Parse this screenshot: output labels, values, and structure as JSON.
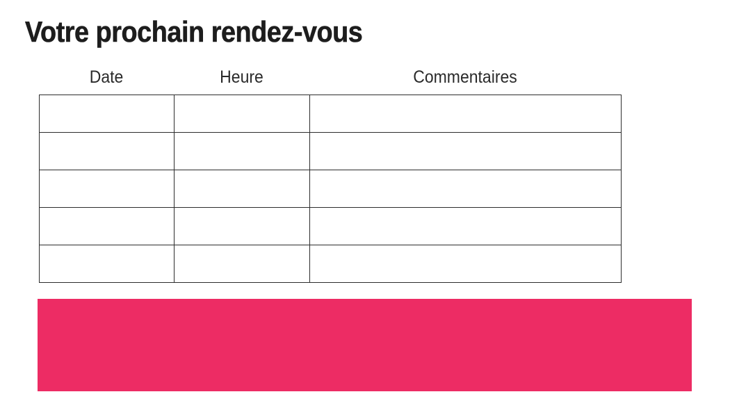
{
  "page": {
    "title": "Votre prochain rendez-vous",
    "background_color": "#ffffff",
    "text_color": "#1d1d1d"
  },
  "table": {
    "columns": [
      {
        "label": "Date"
      },
      {
        "label": "Heure"
      },
      {
        "label": "Commentaires"
      }
    ],
    "rows": [
      [
        "",
        "",
        ""
      ],
      [
        "",
        "",
        ""
      ],
      [
        "",
        "",
        ""
      ],
      [
        "",
        "",
        ""
      ],
      [
        "",
        "",
        ""
      ]
    ],
    "border_color": "#2c2c2c"
  },
  "banner": {
    "color": "#ED2C64",
    "text": ""
  }
}
